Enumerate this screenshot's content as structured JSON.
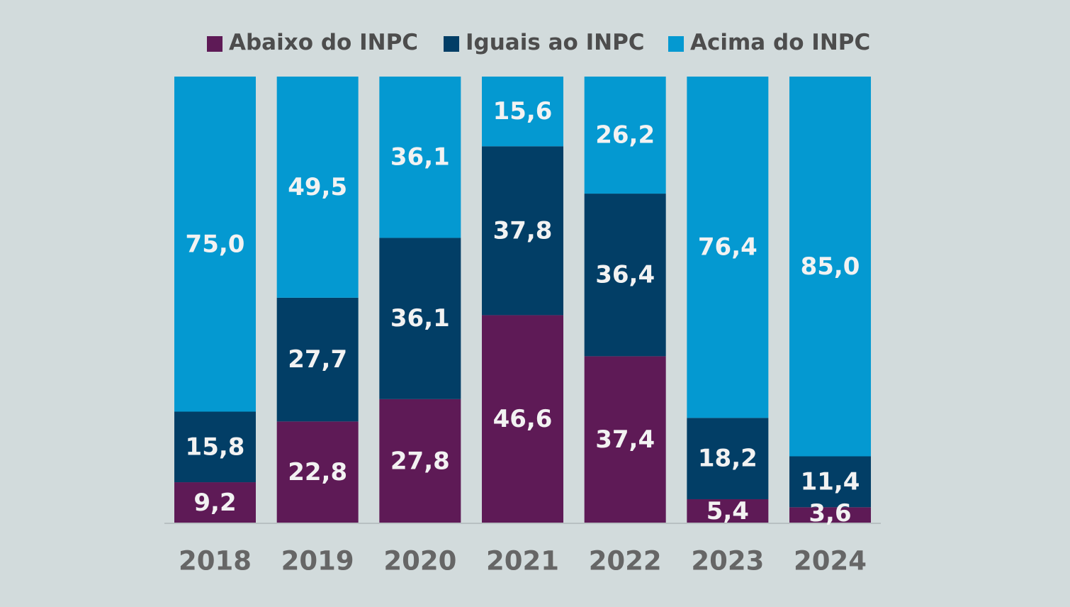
{
  "chart_data": {
    "type": "bar",
    "stacked": true,
    "categories": [
      "2018",
      "2019",
      "2020",
      "2021",
      "2022",
      "2023",
      "2024"
    ],
    "series": [
      {
        "name": "Abaixo do INPC",
        "color": "#5e1a56",
        "values": [
          9.2,
          22.8,
          27.8,
          46.6,
          37.4,
          5.4,
          3.6
        ],
        "labels": [
          "9,2",
          "22,8",
          "27,8",
          "46,6",
          "37,4",
          "5,4",
          "3,6"
        ]
      },
      {
        "name": "Iguais ao INPC",
        "color": "#023e66",
        "values": [
          15.8,
          27.7,
          36.1,
          37.8,
          36.4,
          18.2,
          11.4
        ],
        "labels": [
          "15,8",
          "27,7",
          "36,1",
          "37,8",
          "36,4",
          "18,2",
          "11,4"
        ]
      },
      {
        "name": "Acima do INPC",
        "color": "#0499d1",
        "values": [
          75.0,
          49.5,
          36.1,
          15.6,
          26.2,
          76.4,
          85.0
        ],
        "labels": [
          "75,0",
          "49,5",
          "36,1",
          "15,6",
          "26,2",
          "76,4",
          "85,0"
        ]
      }
    ],
    "ylim": [
      0,
      100
    ],
    "legend_position": "top",
    "grid": false,
    "title": "",
    "xlabel": "",
    "ylabel": ""
  }
}
